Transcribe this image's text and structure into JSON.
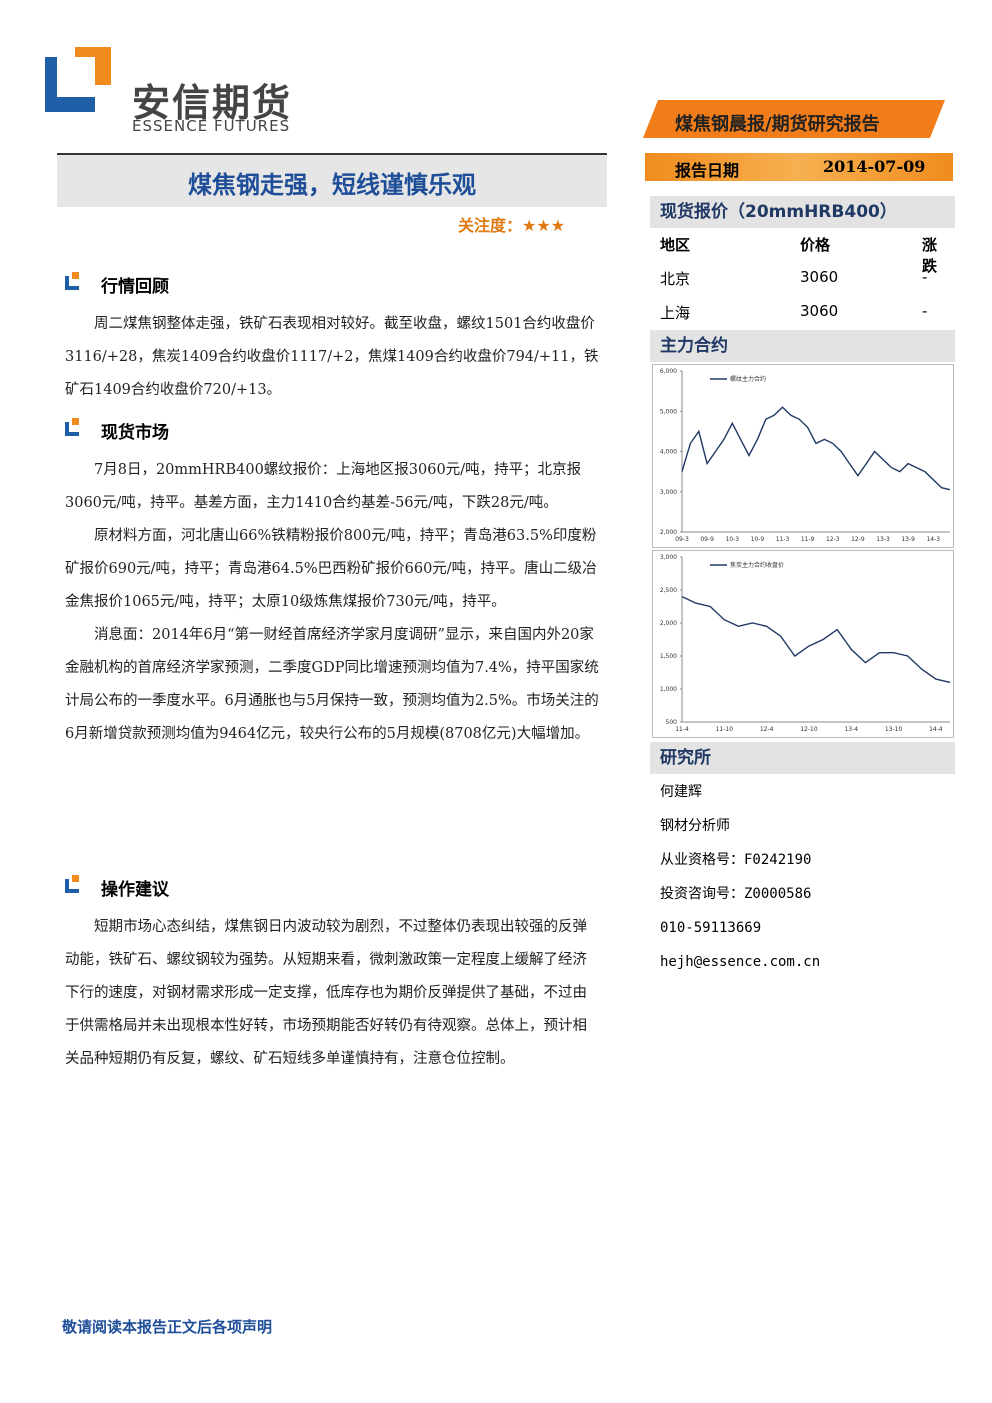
{
  "header": {
    "company": "安信期货",
    "company_en": "ESSENCE FUTURES"
  },
  "banner": "煤焦钢晨报/期货研究报告",
  "report_date": {
    "label": "报告日期",
    "value": "2014-07-09"
  },
  "title": "煤焦钢走强，短线谨慎乐观",
  "attention": {
    "label": "关注度：",
    "stars": "★★★"
  },
  "sections": [
    {
      "heading": "行情回顾",
      "paragraphs": [
        "周二煤焦钢整体走强，铁矿石表现相对较好。截至收盘，螺纹1501合约收盘价3116/+28，焦炭1409合约收盘价1117/+2，焦煤1409合约收盘价794/+11，铁矿石1409合约收盘价720/+13。"
      ]
    },
    {
      "heading": "现货市场",
      "paragraphs": [
        "7月8日，20mmHRB400螺纹报价：上海地区报3060元/吨，持平；北京报3060元/吨，持平。基差方面，主力1410合约基差-56元/吨，下跌28元/吨。",
        "原材料方面，河北唐山66%铁精粉报价800元/吨，持平；青岛港63.5%印度粉矿报价690元/吨，持平；青岛港64.5%巴西粉矿报价660元/吨，持平。唐山二级冶金焦报价1065元/吨，持平；太原10级炼焦煤报价730元/吨，持平。",
        "消息面：2014年6月“第一财经首席经济学家月度调研”显示，来自国内外20家金融机构的首席经济学家预测，二季度GDP同比增速预测均值为7.4%，持平国家统计局公布的一季度水平。6月通胀也与5月保持一致，预测均值为2.5%。市场关注的6月新增贷款预测均值为9464亿元，较央行公布的5月规模(8708亿元)大幅增加。"
      ]
    },
    {
      "heading": "操作建议",
      "paragraphs": [
        "短期市场心态纠结，煤焦钢日内波动较为剧烈，不过整体仍表现出较强的反弹动能，铁矿石、螺纹钢较为强势。从短期来看，微刺激政策一定程度上缓解了经济下行的速度，对钢材需求形成一定支撑，低库存也为期价反弹提供了基础，不过由于供需格局并未出现根本性好转，市场预期能否好转仍有待观察。总体上，预计相关品种短期仍有反复，螺纹、矿石短线多单谨慎持有，注意仓位控制。"
      ]
    }
  ],
  "spot": {
    "heading": "现货报价（20mmHRB400）",
    "columns": [
      "地区",
      "价格",
      "涨跌"
    ],
    "rows": [
      [
        "北京",
        3060,
        "-"
      ],
      [
        "上海",
        3060,
        "-"
      ]
    ]
  },
  "contracts_heading": "主力合约",
  "chart_data": [
    {
      "type": "line",
      "series": [
        {
          "name": "螺纹主力合约",
          "color": "#1f3864",
          "values": [
            3500,
            4200,
            4500,
            3700,
            4000,
            4300,
            4700,
            4300,
            3900,
            4300,
            4800,
            4900,
            5100,
            4900,
            4800,
            4600,
            4200,
            4300,
            4200,
            4000,
            3700,
            3400,
            3700,
            4000,
            3800,
            3600,
            3500,
            3700,
            3600,
            3500,
            3300,
            3100,
            3050
          ]
        }
      ],
      "categories": [
        "09-3",
        null,
        null,
        "09-9",
        null,
        null,
        "10-3",
        null,
        null,
        "10-9",
        null,
        null,
        "11-3",
        null,
        null,
        "11-9",
        null,
        null,
        "12-3",
        null,
        null,
        "12-9",
        null,
        null,
        "13-3",
        null,
        null,
        "13-9",
        null,
        null,
        "14-3",
        null,
        null
      ],
      "ylim": [
        2000,
        6000
      ],
      "yticks": [
        {
          "value": 2000,
          "label": "2,000"
        },
        {
          "value": 3000,
          "label": "3,000"
        },
        {
          "value": 4000,
          "label": "4,000"
        },
        {
          "value": 5000,
          "label": "5,000"
        },
        {
          "value": 6000,
          "label": "6,000"
        }
      ]
    },
    {
      "type": "line",
      "series": [
        {
          "name": "焦炭主力合约收盘价",
          "color": "#1f3864",
          "values": [
            2400,
            2300,
            2250,
            2050,
            1950,
            2000,
            1950,
            1800,
            1500,
            1650,
            1750,
            1900,
            1600,
            1400,
            1550,
            1550,
            1500,
            1300,
            1150,
            1100
          ]
        }
      ],
      "categories": [
        "11-4",
        null,
        null,
        "11-10",
        null,
        null,
        "12-4",
        null,
        null,
        "12-10",
        null,
        null,
        "13-4",
        null,
        null,
        "13-10",
        null,
        null,
        "14-4",
        null
      ],
      "ylim": [
        500,
        3000
      ],
      "yticks": [
        500,
        {
          "value": 1000,
          "label": "1,000"
        },
        {
          "value": 1500,
          "label": "1,500"
        },
        {
          "value": 2000,
          "label": "2,000"
        },
        {
          "value": 2500,
          "label": "2,500"
        },
        {
          "value": 3000,
          "label": "3,000"
        }
      ]
    }
  ],
  "research": {
    "heading": "研究所",
    "lines": [
      "何建辉",
      "钢材分析师",
      "从业资格号：F0242190",
      "投资咨询号：Z0000586",
      "010-59113669",
      "hejh@essence.com.cn"
    ]
  },
  "footer": "敬请阅读本报告正文后各项声明"
}
